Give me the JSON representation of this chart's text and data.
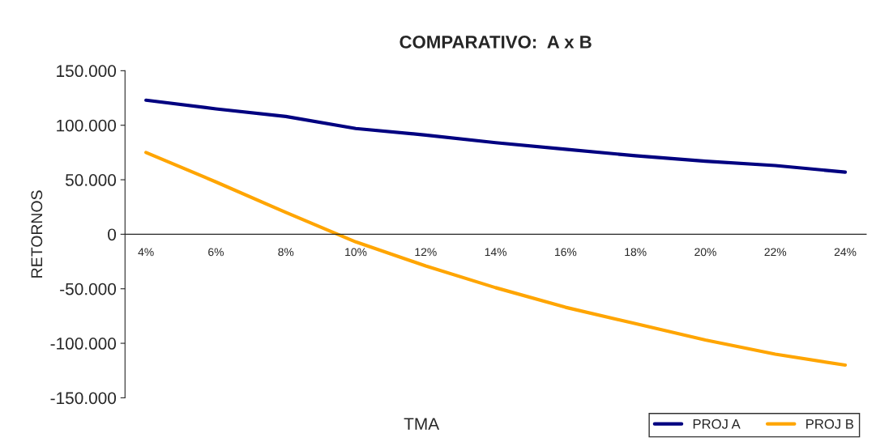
{
  "chart_data": {
    "type": "line",
    "title": "COMPARATIVO:  A x B",
    "xlabel": "TMA",
    "ylabel": "RETORNOS",
    "categories": [
      "4%",
      "6%",
      "8%",
      "10%",
      "12%",
      "14%",
      "16%",
      "18%",
      "20%",
      "22%",
      "24%"
    ],
    "series": [
      {
        "name": "PROJ A",
        "color": "#000080",
        "values": [
          123000,
          115000,
          108000,
          97000,
          91000,
          84000,
          78000,
          72000,
          67000,
          63000,
          57000
        ]
      },
      {
        "name": "PROJ B",
        "color": "#ffa500",
        "values": [
          75000,
          48000,
          20000,
          -7000,
          -29000,
          -49000,
          -67000,
          -82000,
          -97000,
          -110000,
          -120000
        ]
      }
    ],
    "ylim": [
      -150000,
      150000
    ],
    "yticks": [
      {
        "value": -150000,
        "label": "-150.000"
      },
      {
        "value": -100000,
        "label": "-100.000"
      },
      {
        "value": -50000,
        "label": "-50.000"
      },
      {
        "value": 0,
        "label": "0"
      },
      {
        "value": 50000,
        "label": "50.000"
      },
      {
        "value": 100000,
        "label": "100.000"
      },
      {
        "value": 150000,
        "label": "150.000"
      }
    ],
    "grid": false,
    "legend": "bottom right",
    "marker": "none",
    "line_style": "solid"
  }
}
